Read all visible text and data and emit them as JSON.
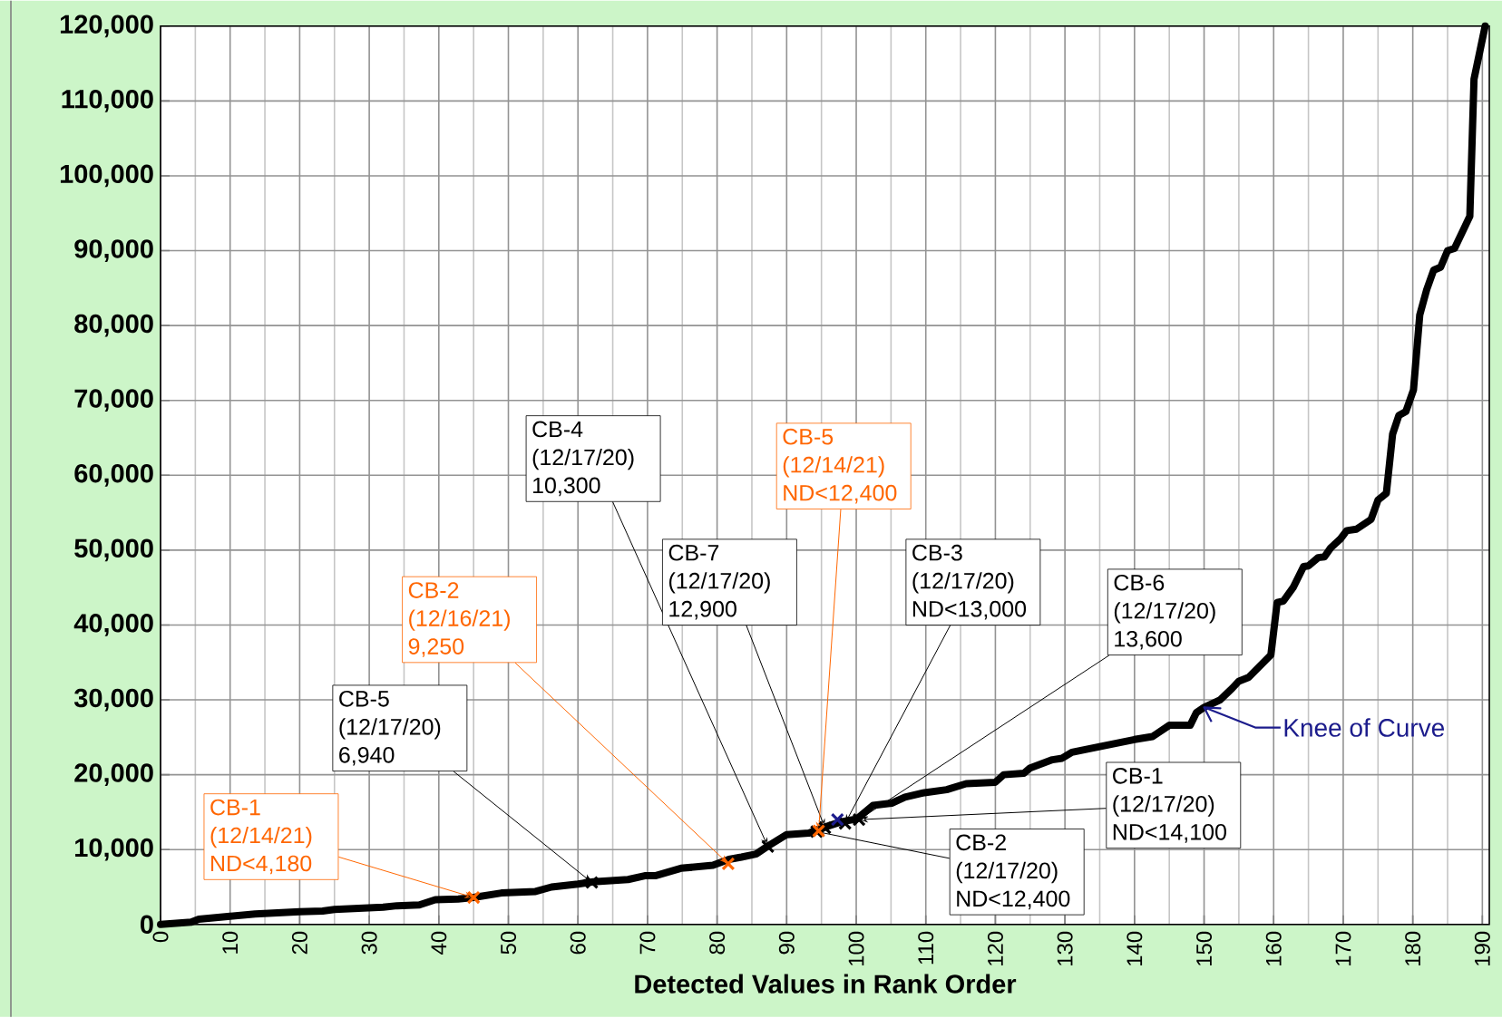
{
  "chart_data": {
    "type": "line",
    "xlabel": "Detected Values in Rank Order",
    "xlim": [
      0,
      191
    ],
    "ylim": [
      0,
      120000
    ],
    "xticks": [
      0,
      {
        "value": 5,
        "label": null
      },
      10,
      {
        "value": 15,
        "label": null
      },
      20,
      {
        "value": 25,
        "label": null
      },
      30,
      {
        "value": 35,
        "label": null
      },
      40,
      {
        "value": 45,
        "label": null
      },
      50,
      {
        "value": 55,
        "label": null
      },
      60,
      {
        "value": 65,
        "label": null
      },
      70,
      {
        "value": 75,
        "label": null
      },
      80,
      {
        "value": 85,
        "label": null
      },
      90,
      {
        "value": 95,
        "label": null
      },
      100,
      {
        "value": 105,
        "label": null
      },
      110,
      {
        "value": 115,
        "label": null
      },
      120,
      {
        "value": 125,
        "label": null
      },
      130,
      {
        "value": 135,
        "label": null
      },
      140,
      {
        "value": 145,
        "label": null
      },
      150,
      {
        "value": 155,
        "label": null
      },
      160,
      {
        "value": 165,
        "label": null
      },
      170,
      {
        "value": 175,
        "label": null
      },
      180,
      {
        "value": 185,
        "label": null
      },
      190
    ],
    "yticks": [
      0,
      {
        "value": 10000,
        "label": "10,000"
      },
      {
        "value": 20000,
        "label": "20,000"
      },
      {
        "value": 30000,
        "label": "30,000"
      },
      {
        "value": 40000,
        "label": "40,000"
      },
      {
        "value": 50000,
        "label": "50,000"
      },
      {
        "value": 60000,
        "label": "60,000"
      },
      {
        "value": 70000,
        "label": "70,000"
      },
      {
        "value": 80000,
        "label": "80,000"
      },
      {
        "value": 90000,
        "label": "90,000"
      },
      {
        "value": 100000,
        "label": "100,000"
      },
      {
        "value": 110000,
        "label": "110,000"
      },
      {
        "value": 120000,
        "label": "120,000"
      }
    ],
    "grid": true,
    "series": [
      {
        "type": "line",
        "color": "#000000",
        "marker": "none",
        "line_style": "solid",
        "x": [
          0,
          4.4,
          5.5,
          10,
          13.6,
          20,
          23.3,
          25,
          32,
          34,
          37.2,
          39.5,
          42.8,
          45,
          49,
          53.9,
          56.2,
          60,
          62.2,
          67.2,
          69.6,
          71.1,
          74.8,
          79.4,
          81.7,
          83.5,
          85.6,
          87.2,
          90,
          93.2,
          94.8,
          97.8,
          100.1,
          102.4,
          105.1,
          107,
          109.8,
          113,
          115.8,
          120,
          121.2,
          124.1,
          125,
          128.2,
          129.6,
          131,
          134.2,
          140,
          142.6,
          145,
          148,
          148.9,
          150,
          152.3,
          154,
          155,
          156.4,
          159.6,
          160.5,
          161.4,
          162.8,
          164.3,
          165,
          166.4,
          167.3,
          168.2,
          169.6,
          170.5,
          171.9,
          174,
          175,
          176.2,
          177.1,
          178,
          179,
          180.1,
          181,
          182,
          183,
          184,
          185,
          186,
          188.2,
          188.8,
          190.4
        ],
        "values": [
          0,
          300,
          700,
          1100,
          1400,
          1700,
          1800,
          2000,
          2300,
          2500,
          2600,
          3300,
          3400,
          3600,
          4200,
          4400,
          5000,
          5400,
          5700,
          6000,
          6500,
          6500,
          7500,
          7900,
          8700,
          9000,
          9400,
          10400,
          12000,
          12200,
          12800,
          13700,
          14100,
          15900,
          16200,
          17000,
          17600,
          18000,
          18800,
          19000,
          20000,
          20200,
          20900,
          22000,
          22200,
          23000,
          23600,
          24700,
          25100,
          26600,
          26600,
          28300,
          29000,
          30000,
          31500,
          32500,
          33000,
          36000,
          43000,
          43200,
          45000,
          47800,
          47900,
          49000,
          49100,
          50300,
          51500,
          52600,
          52800,
          54100,
          56700,
          57600,
          65500,
          68000,
          68500,
          71400,
          81400,
          84800,
          87400,
          87800,
          90000,
          90300,
          94600,
          112900,
          120000
        ]
      },
      {
        "type": "scatter",
        "color": "#000000",
        "marker": "cross",
        "x": [
          62,
          87.3,
          94.3,
          95.5,
          98.4,
          100.4
        ],
        "values": [
          5600,
          10400,
          12400,
          12900,
          13500,
          14000
        ]
      },
      {
        "type": "scatter",
        "color": "#ff6600",
        "marker": "cross",
        "x": [
          45,
          81.6,
          94.6
        ],
        "values": [
          3600,
          8100,
          12500
        ]
      },
      {
        "type": "scatter",
        "color": "#1c1c8c",
        "marker": "cross",
        "x": [
          97.3
        ],
        "values": [
          14000
        ]
      }
    ],
    "annotations": [
      {
        "text": "CB-1 (12/14/21) ND<4,180",
        "x": 45,
        "y": 3600
      },
      {
        "text": "CB-5 (12/17/20) 6,940",
        "x": 62,
        "y": 5600
      },
      {
        "text": "CB-2 (12/16/21) 9,250",
        "x": 81.6,
        "y": 8100
      },
      {
        "text": "CB-4 (12/17/20) 10,300",
        "x": 87.3,
        "y": 10400
      },
      {
        "text": "CB-7 (12/17/20) 12,900",
        "x": 95.5,
        "y": 12900
      },
      {
        "text": "CB-5 (12/14/21) ND<12,400",
        "x": 94.6,
        "y": 12500
      },
      {
        "text": "CB-3 (12/17/20) ND<13,000",
        "x": 98.4,
        "y": 13500
      },
      {
        "text": "CB-6 (12/17/20) 13,600",
        "x": 100.4,
        "y": 14000
      },
      {
        "text": "CB-1 (12/17/20) ND<14,100",
        "x": 100.4,
        "y": 14000
      },
      {
        "text": "CB-2 (12/17/20) ND<12,400",
        "x": 94.3,
        "y": 12400
      },
      "Knee of Curve"
    ]
  }
}
